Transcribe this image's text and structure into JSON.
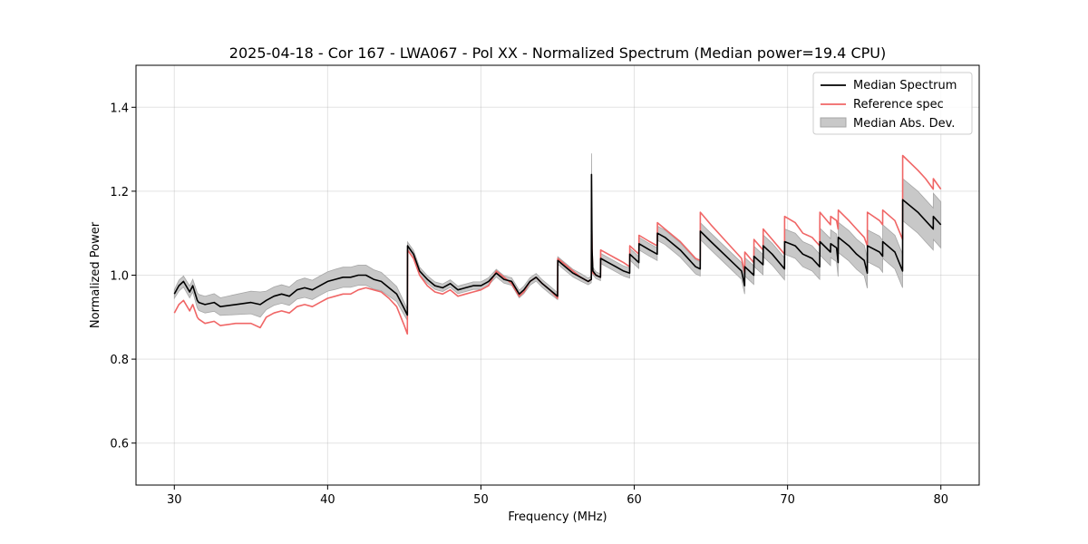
{
  "chart_data": {
    "type": "line",
    "title": "2025-04-18 - Cor 167 - LWA067 - Pol XX - Normalized Spectrum (Median power=19.4 CPU)",
    "xlabel": "Frequency (MHz)",
    "ylabel": "Normalized Power",
    "xlim": [
      27.5,
      82.5
    ],
    "ylim": [
      0.5,
      1.5
    ],
    "xticks": [
      30,
      40,
      50,
      60,
      70,
      80
    ],
    "yticks": [
      0.6,
      0.8,
      1.0,
      1.2,
      1.4
    ],
    "xtick_labels": [
      "30",
      "40",
      "50",
      "60",
      "70",
      "80"
    ],
    "ytick_labels": [
      "0.6",
      "0.8",
      "1.0",
      "1.2",
      "1.4"
    ],
    "grid": true,
    "legend_position": "top-right",
    "legend": [
      "Median Spectrum",
      "Reference spec",
      "Median Abs. Dev."
    ],
    "colors": {
      "median": "#000000",
      "reference": "#f06666",
      "mad_fill": "#c8c8c8",
      "mad_edge": "#a6a6a6"
    },
    "series": [
      {
        "name": "Median Spectrum",
        "x": [
          30.0,
          30.3,
          30.6,
          31.0,
          31.2,
          31.5,
          31.6,
          32.0,
          32.6,
          33.0,
          34.0,
          35.0,
          35.6,
          36.0,
          36.5,
          37.0,
          37.5,
          38.0,
          38.5,
          39.0,
          39.5,
          40.0,
          40.5,
          41.0,
          41.5,
          42.0,
          42.5,
          43.0,
          43.5,
          44.0,
          44.5,
          45.0,
          45.2,
          45.21,
          45.6,
          46.0,
          46.5,
          47.0,
          47.5,
          48.0,
          48.5,
          49.0,
          49.5,
          50.0,
          50.5,
          51.0,
          51.5,
          52.0,
          52.5,
          52.8,
          53.2,
          53.6,
          54.0,
          54.5,
          55.0,
          55.01,
          55.5,
          56.0,
          56.5,
          57.0,
          57.2,
          57.21,
          57.25,
          57.3,
          57.5,
          57.8,
          57.81,
          58.3,
          58.8,
          59.3,
          59.7,
          59.71,
          60.3,
          60.31,
          61.0,
          61.5,
          61.51,
          62.0,
          63.0,
          64.0,
          64.3,
          64.31,
          65.0,
          66.0,
          67.0,
          67.2,
          67.21,
          67.8,
          67.81,
          68.4,
          68.41,
          69.0,
          69.8,
          69.81,
          70.5,
          71.0,
          71.6,
          72.1,
          72.11,
          72.8,
          72.81,
          73.2,
          73.3,
          73.31,
          74.0,
          74.5,
          75.0,
          75.2,
          75.21,
          76.0,
          76.2,
          76.21,
          77.0,
          77.5,
          77.51,
          78.5,
          79.0,
          79.5,
          79.51,
          80.0
        ],
        "values": [
          0.955,
          0.975,
          0.985,
          0.96,
          0.975,
          0.94,
          0.935,
          0.93,
          0.935,
          0.925,
          0.93,
          0.935,
          0.93,
          0.94,
          0.95,
          0.955,
          0.95,
          0.965,
          0.97,
          0.965,
          0.975,
          0.985,
          0.99,
          0.995,
          0.995,
          1.0,
          1.0,
          0.99,
          0.985,
          0.97,
          0.955,
          0.92,
          0.905,
          1.07,
          1.05,
          1.01,
          0.99,
          0.975,
          0.97,
          0.98,
          0.965,
          0.97,
          0.975,
          0.975,
          0.985,
          1.005,
          0.99,
          0.985,
          0.955,
          0.965,
          0.985,
          0.995,
          0.98,
          0.965,
          0.95,
          1.035,
          1.02,
          1.005,
          0.995,
          0.985,
          0.99,
          1.24,
          1.06,
          1.01,
          1.0,
          0.995,
          1.04,
          1.03,
          1.02,
          1.01,
          1.005,
          1.05,
          1.03,
          1.075,
          1.06,
          1.05,
          1.1,
          1.09,
          1.06,
          1.02,
          1.015,
          1.105,
          1.08,
          1.045,
          1.01,
          0.975,
          1.02,
          1.0,
          1.045,
          1.025,
          1.07,
          1.05,
          1.015,
          1.08,
          1.07,
          1.05,
          1.04,
          1.02,
          1.08,
          1.055,
          1.075,
          1.065,
          1.03,
          1.09,
          1.07,
          1.05,
          1.035,
          1.005,
          1.07,
          1.055,
          1.045,
          1.08,
          1.055,
          1.01,
          1.18,
          1.15,
          1.13,
          1.11,
          1.14,
          1.12
        ]
      },
      {
        "name": "Reference spec",
        "x": [
          30.0,
          30.3,
          30.6,
          31.0,
          31.2,
          31.5,
          31.6,
          32.0,
          32.6,
          33.0,
          34.0,
          35.0,
          35.6,
          36.0,
          36.5,
          37.0,
          37.5,
          38.0,
          38.5,
          39.0,
          39.5,
          40.0,
          40.5,
          41.0,
          41.5,
          42.0,
          42.5,
          43.0,
          43.5,
          44.0,
          44.5,
          45.0,
          45.2,
          45.21,
          45.6,
          46.0,
          46.5,
          47.0,
          47.5,
          48.0,
          48.5,
          49.0,
          49.5,
          50.0,
          50.5,
          51.0,
          51.5,
          52.0,
          52.5,
          52.8,
          53.2,
          53.6,
          54.0,
          54.5,
          55.0,
          55.01,
          55.5,
          56.0,
          56.5,
          57.0,
          57.2,
          57.21,
          57.25,
          57.3,
          57.5,
          57.8,
          57.81,
          58.3,
          58.8,
          59.3,
          59.7,
          59.71,
          60.3,
          60.31,
          61.0,
          61.5,
          61.51,
          62.0,
          63.0,
          64.0,
          64.3,
          64.31,
          65.0,
          66.0,
          67.0,
          67.2,
          67.21,
          67.8,
          67.81,
          68.4,
          68.41,
          69.0,
          69.8,
          69.81,
          70.5,
          71.0,
          71.6,
          72.1,
          72.11,
          72.8,
          72.81,
          73.2,
          73.3,
          73.31,
          74.0,
          74.5,
          75.0,
          75.2,
          75.21,
          76.0,
          76.2,
          76.21,
          77.0,
          77.5,
          77.51,
          78.5,
          79.0,
          79.5,
          79.51,
          80.0
        ],
        "values": [
          0.91,
          0.93,
          0.94,
          0.915,
          0.93,
          0.9,
          0.895,
          0.885,
          0.89,
          0.88,
          0.885,
          0.885,
          0.875,
          0.9,
          0.91,
          0.915,
          0.91,
          0.925,
          0.93,
          0.925,
          0.935,
          0.945,
          0.95,
          0.955,
          0.955,
          0.965,
          0.97,
          0.965,
          0.96,
          0.945,
          0.925,
          0.88,
          0.86,
          1.06,
          1.04,
          1.0,
          0.975,
          0.96,
          0.955,
          0.965,
          0.95,
          0.955,
          0.96,
          0.965,
          0.975,
          1.01,
          0.995,
          0.98,
          0.95,
          0.96,
          0.985,
          0.995,
          0.98,
          0.965,
          0.945,
          1.04,
          1.025,
          1.01,
          0.995,
          0.985,
          0.99,
          1.16,
          1.06,
          1.005,
          1.0,
          0.995,
          1.06,
          1.05,
          1.04,
          1.03,
          1.02,
          1.07,
          1.05,
          1.095,
          1.08,
          1.07,
          1.125,
          1.11,
          1.08,
          1.04,
          1.035,
          1.15,
          1.12,
          1.08,
          1.04,
          1.005,
          1.055,
          1.03,
          1.085,
          1.06,
          1.11,
          1.085,
          1.05,
          1.14,
          1.125,
          1.1,
          1.09,
          1.07,
          1.15,
          1.12,
          1.14,
          1.13,
          1.11,
          1.155,
          1.13,
          1.11,
          1.09,
          1.07,
          1.15,
          1.13,
          1.12,
          1.155,
          1.13,
          1.085,
          1.285,
          1.25,
          1.23,
          1.205,
          1.23,
          1.205
        ]
      },
      {
        "name": "Median Abs. Dev.",
        "x": [
          30.0,
          30.3,
          30.6,
          31.0,
          31.2,
          31.5,
          31.6,
          32.0,
          32.6,
          33.0,
          34.0,
          35.0,
          35.6,
          36.0,
          36.5,
          37.0,
          37.5,
          38.0,
          38.5,
          39.0,
          39.5,
          40.0,
          40.5,
          41.0,
          41.5,
          42.0,
          42.5,
          43.0,
          43.5,
          44.0,
          44.5,
          45.0,
          45.2,
          45.21,
          45.6,
          46.0,
          46.5,
          47.0,
          47.5,
          48.0,
          48.5,
          49.0,
          49.5,
          50.0,
          50.5,
          51.0,
          51.5,
          52.0,
          52.5,
          52.8,
          53.2,
          53.6,
          54.0,
          54.5,
          55.0,
          55.01,
          55.5,
          56.0,
          56.5,
          57.0,
          57.2,
          57.21,
          57.25,
          57.3,
          57.5,
          57.8,
          57.81,
          58.3,
          58.8,
          59.3,
          59.7,
          59.71,
          60.3,
          60.31,
          61.0,
          61.5,
          61.51,
          62.0,
          63.0,
          64.0,
          64.3,
          64.31,
          65.0,
          66.0,
          67.0,
          67.2,
          67.21,
          67.8,
          67.81,
          68.4,
          68.41,
          69.0,
          69.8,
          69.81,
          70.5,
          71.0,
          71.6,
          72.1,
          72.11,
          72.8,
          72.81,
          73.2,
          73.3,
          73.31,
          74.0,
          74.5,
          75.0,
          75.2,
          75.21,
          76.0,
          76.2,
          76.21,
          77.0,
          77.5,
          77.51,
          78.5,
          79.0,
          79.5,
          79.51,
          80.0
        ],
        "lower": [
          0.945,
          0.962,
          0.972,
          0.946,
          0.96,
          0.922,
          0.916,
          0.91,
          0.914,
          0.904,
          0.906,
          0.908,
          0.9,
          0.918,
          0.928,
          0.933,
          0.928,
          0.943,
          0.947,
          0.942,
          0.952,
          0.962,
          0.966,
          0.971,
          0.971,
          0.976,
          0.976,
          0.967,
          0.963,
          0.95,
          0.937,
          0.905,
          0.892,
          1.061,
          1.041,
          1.001,
          0.981,
          0.966,
          0.961,
          0.971,
          0.956,
          0.961,
          0.966,
          0.966,
          0.976,
          0.996,
          0.981,
          0.976,
          0.946,
          0.956,
          0.976,
          0.986,
          0.971,
          0.956,
          0.942,
          1.026,
          1.011,
          0.996,
          0.986,
          0.977,
          0.982,
          1.17,
          1.05,
          1.001,
          0.992,
          0.987,
          1.028,
          1.018,
          1.008,
          0.998,
          0.993,
          1.036,
          1.016,
          1.06,
          1.045,
          1.035,
          1.083,
          1.073,
          1.043,
          1.003,
          0.998,
          1.085,
          1.06,
          1.025,
          0.99,
          0.955,
          0.998,
          0.978,
          1.021,
          1.001,
          1.044,
          1.024,
          0.989,
          1.05,
          1.04,
          1.02,
          1.01,
          0.99,
          1.048,
          1.023,
          1.042,
          1.032,
          0.997,
          1.054,
          1.034,
          1.014,
          0.999,
          0.969,
          1.032,
          1.017,
          1.007,
          1.04,
          1.015,
          0.97,
          1.13,
          1.1,
          1.08,
          1.06,
          1.085,
          1.065
        ],
        "upper": [
          0.965,
          0.988,
          0.998,
          0.974,
          0.99,
          0.958,
          0.954,
          0.95,
          0.956,
          0.946,
          0.954,
          0.962,
          0.96,
          0.962,
          0.972,
          0.977,
          0.972,
          0.987,
          0.993,
          0.988,
          0.998,
          1.008,
          1.014,
          1.019,
          1.019,
          1.024,
          1.024,
          1.013,
          1.007,
          0.99,
          0.973,
          0.935,
          0.918,
          1.079,
          1.059,
          1.019,
          0.999,
          0.984,
          0.979,
          0.989,
          0.974,
          0.979,
          0.984,
          0.984,
          0.994,
          1.014,
          0.999,
          0.994,
          0.964,
          0.974,
          0.994,
          1.004,
          0.989,
          0.974,
          0.958,
          1.044,
          1.029,
          1.014,
          1.004,
          0.993,
          0.998,
          1.29,
          1.07,
          1.019,
          1.008,
          1.003,
          1.052,
          1.042,
          1.032,
          1.022,
          1.017,
          1.064,
          1.044,
          1.09,
          1.075,
          1.065,
          1.117,
          1.107,
          1.077,
          1.037,
          1.032,
          1.125,
          1.1,
          1.065,
          1.03,
          0.995,
          1.042,
          1.022,
          1.069,
          1.049,
          1.096,
          1.076,
          1.041,
          1.11,
          1.1,
          1.08,
          1.07,
          1.05,
          1.112,
          1.087,
          1.108,
          1.098,
          1.063,
          1.126,
          1.106,
          1.086,
          1.071,
          1.041,
          1.108,
          1.093,
          1.083,
          1.12,
          1.095,
          1.05,
          1.23,
          1.2,
          1.18,
          1.16,
          1.195,
          1.175
        ]
      }
    ]
  }
}
